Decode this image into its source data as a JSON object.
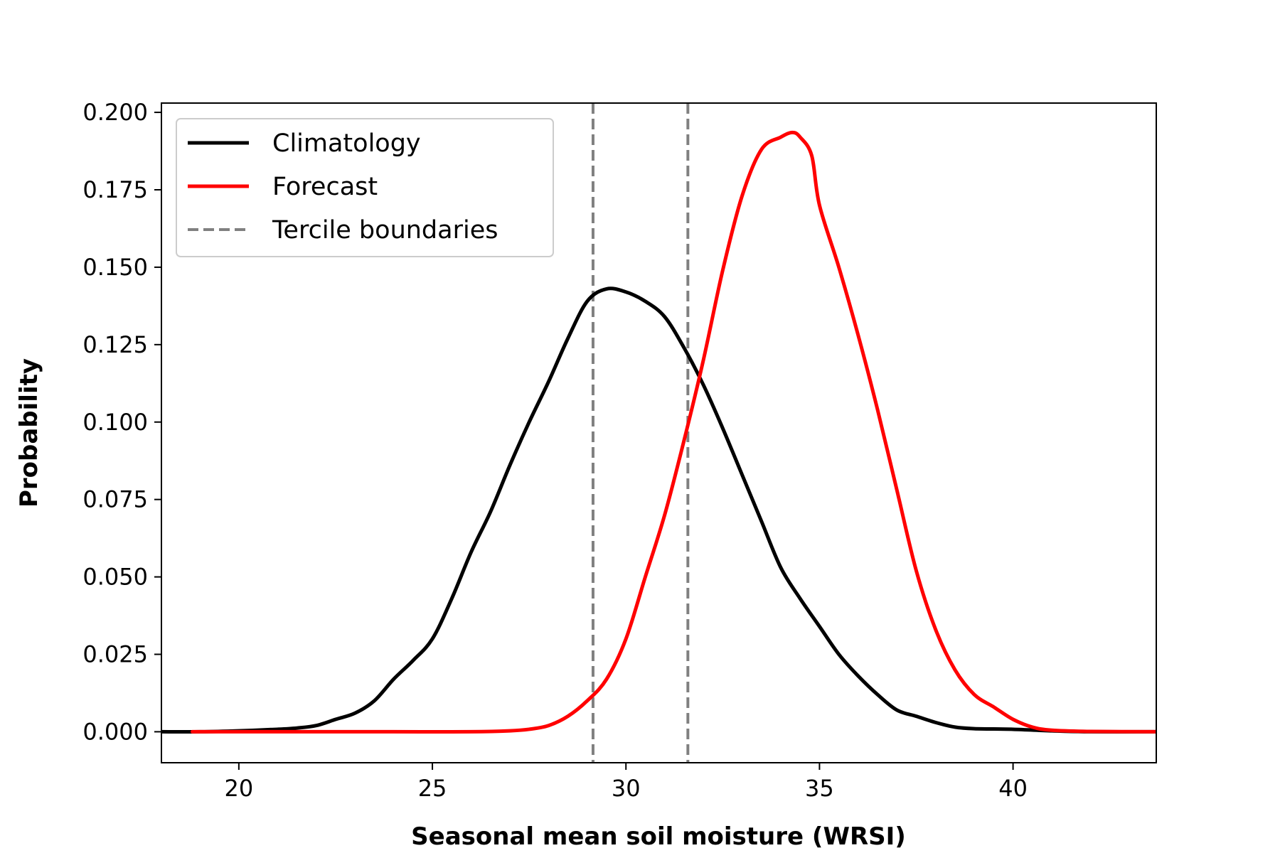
{
  "chart_data": {
    "type": "line",
    "xlabel": "Seasonal mean soil moisture (WRSI)",
    "ylabel": "Probability",
    "xlim": [
      18,
      43.7
    ],
    "ylim": [
      -0.01,
      0.203
    ],
    "x_ticks": [
      20,
      25,
      30,
      35,
      40
    ],
    "y_ticks": [
      0.0,
      0.025,
      0.05,
      0.075,
      0.1,
      0.125,
      0.15,
      0.175,
      0.2
    ],
    "grid": false,
    "legend_position": "top-left",
    "series": [
      {
        "name": "Climatology",
        "color": "#000000",
        "style": "solid",
        "x": [
          18,
          19,
          20,
          21,
          21.5,
          22,
          22.5,
          23,
          23.5,
          24,
          24.5,
          25,
          25.5,
          26,
          26.5,
          27,
          27.5,
          28,
          28.5,
          29,
          29.5,
          30,
          30.5,
          31,
          31.5,
          32,
          32.5,
          33,
          33.5,
          34,
          34.5,
          35,
          35.5,
          36,
          36.5,
          37,
          37.5,
          38,
          38.5,
          39,
          40,
          41,
          42,
          43.7
        ],
        "y": [
          0.0,
          0.0,
          0.0003,
          0.0008,
          0.0012,
          0.002,
          0.004,
          0.006,
          0.01,
          0.017,
          0.023,
          0.03,
          0.043,
          0.058,
          0.071,
          0.086,
          0.1,
          0.113,
          0.127,
          0.139,
          0.143,
          0.142,
          0.139,
          0.134,
          0.124,
          0.112,
          0.098,
          0.083,
          0.068,
          0.053,
          0.043,
          0.034,
          0.025,
          0.018,
          0.012,
          0.007,
          0.005,
          0.003,
          0.0015,
          0.001,
          0.0008,
          0.0003,
          0.0,
          0.0
        ]
      },
      {
        "name": "Forecast",
        "color": "#ff0000",
        "style": "solid",
        "x": [
          18.8,
          20,
          22,
          24,
          26,
          27,
          27.5,
          28,
          28.5,
          29,
          29.5,
          30,
          30.5,
          31,
          31.5,
          32,
          32.5,
          33,
          33.5,
          34,
          34.3,
          34.5,
          34.8,
          35,
          35.5,
          36,
          36.5,
          37,
          37.5,
          38,
          38.5,
          39,
          39.5,
          40,
          40.5,
          41,
          42,
          43.7
        ],
        "y": [
          0.0,
          0.0,
          0.0,
          0.0,
          0.0,
          0.0003,
          0.0008,
          0.002,
          0.005,
          0.01,
          0.017,
          0.03,
          0.05,
          0.07,
          0.094,
          0.12,
          0.149,
          0.173,
          0.188,
          0.192,
          0.1935,
          0.192,
          0.186,
          0.17,
          0.15,
          0.128,
          0.104,
          0.078,
          0.052,
          0.033,
          0.02,
          0.012,
          0.008,
          0.004,
          0.0015,
          0.0005,
          0.0001,
          0.0
        ]
      }
    ],
    "vlines": {
      "name": "Tercile boundaries",
      "color": "#808080",
      "style": "dashed",
      "x": [
        29.15,
        31.6
      ]
    }
  }
}
